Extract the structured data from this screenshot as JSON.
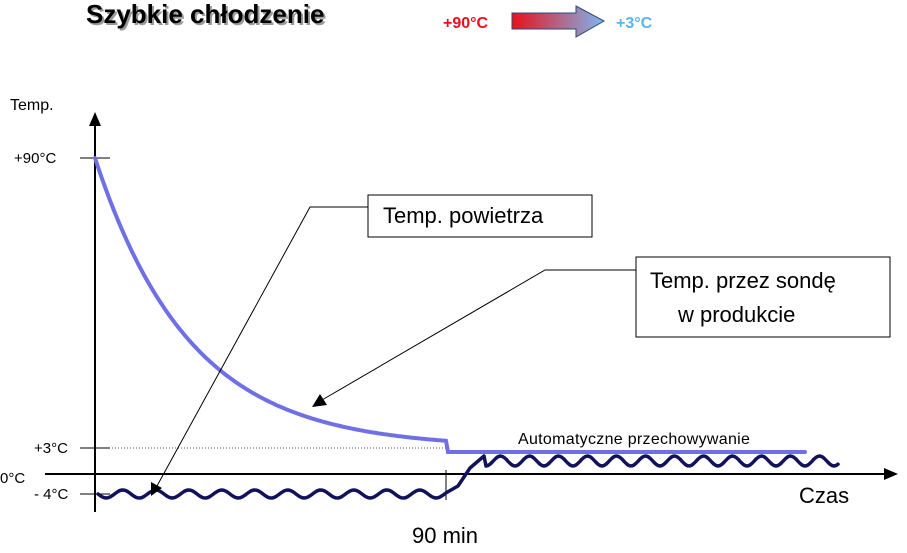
{
  "header": {
    "title": "Szybkie chłodzenie",
    "temp_from": "+90°C",
    "temp_to": "+3°C",
    "color_from": "#e8101a",
    "color_to": "#5ab4ee"
  },
  "axes": {
    "y_label": "Temp.",
    "x_label": "Czas",
    "y_ticks": [
      "+90°C",
      "+3°C",
      "0°C",
      "- 4°C"
    ],
    "x_tick": "90 min"
  },
  "callouts": {
    "air": "Temp. powietrza",
    "probe_line1": "Temp. przez sondę",
    "probe_line2": "w produkcie"
  },
  "storage_label": "Automatyczne  przechowywanie",
  "colors": {
    "probe_curve": "#7070e6",
    "air_curve": "#12125c",
    "axis": "#000000"
  }
}
